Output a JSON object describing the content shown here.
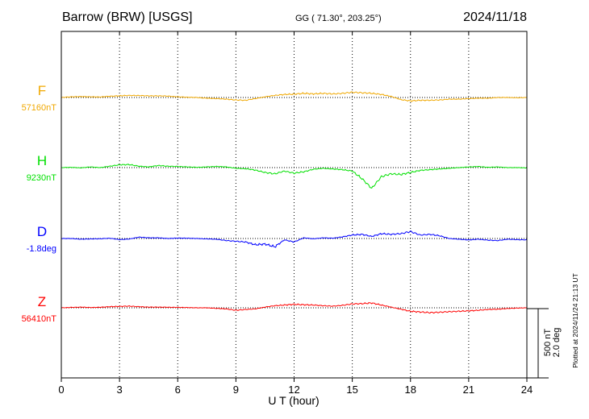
{
  "header": {
    "station": "Barrow (BRW)  [USGS]",
    "coords": "GG ( 71.30°, 203.25°)",
    "date": "2024/11/18"
  },
  "footer": {
    "plotted": "Plotted at 2024/11/24 21:13 UT"
  },
  "colors": {
    "F": "#f0a800",
    "H": "#00e000",
    "D": "#0000ff",
    "Z": "#ff0000",
    "frame": "#000000"
  },
  "chart_data": {
    "type": "line",
    "xlabel": "U T (hour)",
    "xlim": [
      0,
      24
    ],
    "x_ticks": [
      "0",
      "3",
      "6",
      "9",
      "12",
      "15",
      "18",
      "21",
      "24"
    ],
    "grid": true,
    "scale_bar": {
      "line1": "500 nT",
      "line2": "2.0 deg",
      "nT_per_bar": 500
    },
    "x": [
      0,
      0.5,
      1,
      1.5,
      2,
      2.5,
      3,
      3.5,
      4,
      4.5,
      5,
      5.5,
      6,
      6.5,
      7,
      7.5,
      8,
      8.5,
      9,
      9.5,
      10,
      10.5,
      11,
      11.5,
      12,
      12.5,
      13,
      13.5,
      14,
      14.5,
      15,
      15.5,
      16,
      16.5,
      17,
      17.5,
      18,
      18.5,
      19,
      19.5,
      20,
      20.5,
      21,
      21.5,
      22,
      22.5,
      23,
      23.5,
      24
    ],
    "series": [
      {
        "name": "F",
        "baseline_label": "57160nT",
        "values": [
          0,
          5,
          7,
          5,
          4,
          9,
          12,
          15,
          14,
          12,
          12,
          10,
          5,
          2,
          0,
          -5,
          -8,
          -12,
          -18,
          -20,
          -8,
          5,
          15,
          22,
          24,
          30,
          26,
          30,
          26,
          30,
          38,
          34,
          30,
          22,
          8,
          -15,
          -25,
          -20,
          -20,
          -18,
          -12,
          -12,
          -8,
          -5,
          -5,
          0,
          0,
          -2,
          0
        ]
      },
      {
        "name": "H",
        "baseline_label": "9230nT",
        "values": [
          0,
          2,
          -2,
          5,
          0,
          10,
          20,
          22,
          10,
          5,
          15,
          10,
          8,
          5,
          2,
          5,
          8,
          5,
          -5,
          -8,
          -18,
          -35,
          -45,
          -25,
          -40,
          -30,
          -12,
          -5,
          -10,
          -15,
          -25,
          -80,
          -150,
          -65,
          -45,
          -50,
          -35,
          -20,
          -15,
          -10,
          -5,
          0,
          5,
          8,
          2,
          5,
          0,
          0,
          -2
        ]
      },
      {
        "name": "D",
        "baseline_label": "-1.8deg",
        "values": [
          0,
          0,
          -5,
          -3,
          -2,
          2,
          -8,
          -4,
          10,
          5,
          5,
          0,
          3,
          2,
          0,
          -3,
          -5,
          -15,
          -20,
          -25,
          -45,
          -40,
          -60,
          -10,
          -25,
          5,
          -2,
          5,
          2,
          12,
          25,
          30,
          15,
          35,
          30,
          35,
          50,
          25,
          30,
          20,
          0,
          -5,
          -10,
          -5,
          -12,
          -15,
          -5,
          -8,
          -10
        ]
      },
      {
        "name": "Z",
        "baseline_label": "56410nT",
        "values": [
          0,
          3,
          5,
          2,
          4,
          8,
          10,
          12,
          8,
          5,
          5,
          4,
          3,
          2,
          0,
          0,
          -4,
          -8,
          -18,
          -12,
          -8,
          5,
          15,
          20,
          25,
          22,
          20,
          15,
          12,
          18,
          28,
          30,
          35,
          20,
          5,
          -10,
          -25,
          -30,
          -35,
          -32,
          -28,
          -25,
          -22,
          -18,
          -12,
          -10,
          -5,
          -2,
          0
        ]
      }
    ]
  }
}
